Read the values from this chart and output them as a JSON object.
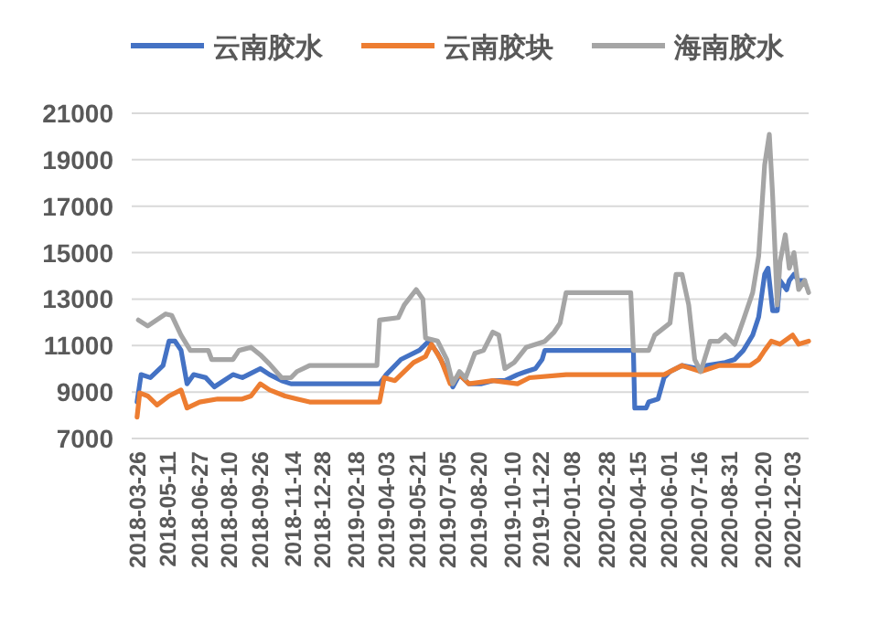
{
  "chart_data": {
    "type": "line",
    "grid": "y",
    "legend": "top",
    "line_style": "solid",
    "xlim": [
      "2018-03-18",
      "2020-12-28"
    ],
    "ylim": [
      7000,
      21000
    ],
    "yticks": [
      7000,
      9000,
      11000,
      13000,
      15000,
      17000,
      19000,
      21000
    ],
    "xticks": [
      "2018-03-26",
      "2018-05-11",
      "2018-06-27",
      "2018-08-10",
      "2018-09-26",
      "2018-11-14",
      "2018-12-28",
      "2019-02-18",
      "2019-04-03",
      "2019-05-21",
      "2019-07-05",
      "2019-08-20",
      "2019-10-10",
      "2019-11-22",
      "2020-01-08",
      "2020-02-28",
      "2020-04-15",
      "2020-06-01",
      "2020-07-16",
      "2020-08-31",
      "2020-10-20",
      "2020-12-03"
    ],
    "series": [
      {
        "name": "云南胶水",
        "color": "#4472c4",
        "x": [
          "2018-03-26",
          "2018-03-30",
          "2018-04-01",
          "2018-04-15",
          "2018-05-04",
          "2018-05-13",
          "2018-05-22",
          "2018-05-31",
          "2018-06-09",
          "2018-06-19",
          "2018-07-07",
          "2018-07-20",
          "2018-08-17",
          "2018-08-31",
          "2018-09-09",
          "2018-09-27",
          "2018-10-11",
          "2018-10-29",
          "2018-11-12",
          "2019-03-25",
          "2019-04-04",
          "2019-04-26",
          "2019-05-24",
          "2019-06-07",
          "2019-06-20",
          "2019-07-04",
          "2019-07-13",
          "2019-07-23",
          "2019-08-06",
          "2019-08-24",
          "2019-09-11",
          "2019-09-29",
          "2019-10-18",
          "2019-10-31",
          "2019-11-14",
          "2019-11-24",
          "2019-11-28",
          "2020-04-09",
          "2020-04-11",
          "2020-04-28",
          "2020-05-02",
          "2020-05-16",
          "2020-05-25",
          "2020-06-03",
          "2020-06-21",
          "2020-07-15",
          "2020-07-28",
          "2020-08-25",
          "2020-09-08",
          "2020-09-21",
          "2020-10-05",
          "2020-10-14",
          "2020-10-23",
          "2020-10-28",
          "2020-11-04",
          "2020-11-11",
          "2020-11-15",
          "2020-11-25",
          "2020-11-29",
          "2020-12-06",
          "2020-12-13",
          "2020-12-22"
        ],
        "values": [
          8570,
          9355,
          9750,
          9620,
          10140,
          11190,
          11190,
          10800,
          9355,
          9750,
          9620,
          9220,
          9750,
          9620,
          9750,
          10010,
          9750,
          9490,
          9355,
          9355,
          9750,
          10400,
          10800,
          11190,
          10665,
          9880,
          9220,
          9750,
          9355,
          9355,
          9490,
          9490,
          9750,
          9880,
          10010,
          10400,
          10790,
          10790,
          8310,
          8310,
          8570,
          8700,
          9615,
          9880,
          10140,
          10010,
          10140,
          10270,
          10400,
          10790,
          11450,
          12230,
          14065,
          14330,
          12500,
          12500,
          13800,
          13400,
          13800,
          14065,
          13800,
          13800
        ]
      },
      {
        "name": "云南胶块",
        "color": "#ed7d31",
        "x": [
          "2018-03-26",
          "2018-03-30",
          "2018-04-11",
          "2018-04-25",
          "2018-05-13",
          "2018-05-31",
          "2018-06-09",
          "2018-06-28",
          "2018-07-25",
          "2018-08-31",
          "2018-09-13",
          "2018-09-27",
          "2018-10-11",
          "2018-11-03",
          "2018-11-21",
          "2018-12-10",
          "2019-03-25",
          "2019-04-01",
          "2019-04-17",
          "2019-05-15",
          "2019-06-02",
          "2019-06-11",
          "2019-06-25",
          "2019-07-09",
          "2019-07-23",
          "2019-08-06",
          "2019-09-11",
          "2019-10-18",
          "2019-11-05",
          "2019-12-30",
          "2020-05-25",
          "2020-06-21",
          "2020-07-19",
          "2020-08-15",
          "2020-10-01",
          "2020-10-14",
          "2020-10-23",
          "2020-11-02",
          "2020-11-15",
          "2020-12-04",
          "2020-12-13",
          "2020-12-28"
        ],
        "values": [
          7920,
          8960,
          8830,
          8440,
          8830,
          9090,
          8310,
          8570,
          8700,
          8700,
          8830,
          9355,
          9090,
          8830,
          8700,
          8570,
          8570,
          9615,
          9490,
          10270,
          10530,
          11060,
          10400,
          9355,
          9750,
          9355,
          9490,
          9355,
          9615,
          9750,
          9750,
          10140,
          9880,
          10140,
          10140,
          10400,
          10790,
          11190,
          11060,
          11450,
          11060,
          11190
        ]
      },
      {
        "name": "海南胶水",
        "color": "#a5a5a5",
        "x": [
          "2018-03-28",
          "2018-04-11",
          "2018-05-08",
          "2018-05-17",
          "2018-05-31",
          "2018-06-14",
          "2018-07-11",
          "2018-07-16",
          "2018-08-17",
          "2018-08-26",
          "2018-09-13",
          "2018-09-27",
          "2018-10-11",
          "2018-10-29",
          "2018-11-12",
          "2018-11-21",
          "2018-12-10",
          "2019-03-21",
          "2019-03-25",
          "2019-04-22",
          "2019-05-01",
          "2019-05-19",
          "2019-05-29",
          "2019-06-02",
          "2019-06-20",
          "2019-07-04",
          "2019-07-13",
          "2019-07-23",
          "2019-08-01",
          "2019-08-15",
          "2019-08-28",
          "2019-09-11",
          "2019-09-20",
          "2019-09-29",
          "2019-10-13",
          "2019-10-31",
          "2019-11-14",
          "2019-11-28",
          "2019-12-12",
          "2019-12-21",
          "2019-12-30",
          "2020-04-05",
          "2020-04-09",
          "2020-05-02",
          "2020-05-11",
          "2020-06-03",
          "2020-06-12",
          "2020-06-21",
          "2020-07-01",
          "2020-07-10",
          "2020-07-19",
          "2020-08-02",
          "2020-08-15",
          "2020-08-25",
          "2020-09-08",
          "2020-09-21",
          "2020-10-05",
          "2020-10-14",
          "2020-10-23",
          "2020-10-30",
          "2020-11-04",
          "2020-11-11",
          "2020-11-15",
          "2020-11-23",
          "2020-11-29",
          "2020-12-06",
          "2020-12-13",
          "2020-12-22",
          "2020-12-28"
        ],
        "values": [
          12100,
          11840,
          12360,
          12300,
          11450,
          10790,
          10790,
          10400,
          10400,
          10790,
          10925,
          10600,
          10200,
          9615,
          9615,
          9880,
          10140,
          10140,
          12100,
          12200,
          12750,
          13410,
          13000,
          11320,
          11200,
          10400,
          9355,
          9880,
          9600,
          10665,
          10790,
          11580,
          11450,
          10010,
          10270,
          10920,
          11050,
          11180,
          11580,
          11970,
          13280,
          13280,
          10790,
          10790,
          11450,
          11970,
          14065,
          14065,
          12750,
          10400,
          9880,
          11180,
          11180,
          11450,
          11050,
          12100,
          13280,
          14850,
          18775,
          20090,
          17460,
          12750,
          14590,
          15770,
          14330,
          15000,
          13410,
          13800,
          13280
        ]
      }
    ]
  }
}
